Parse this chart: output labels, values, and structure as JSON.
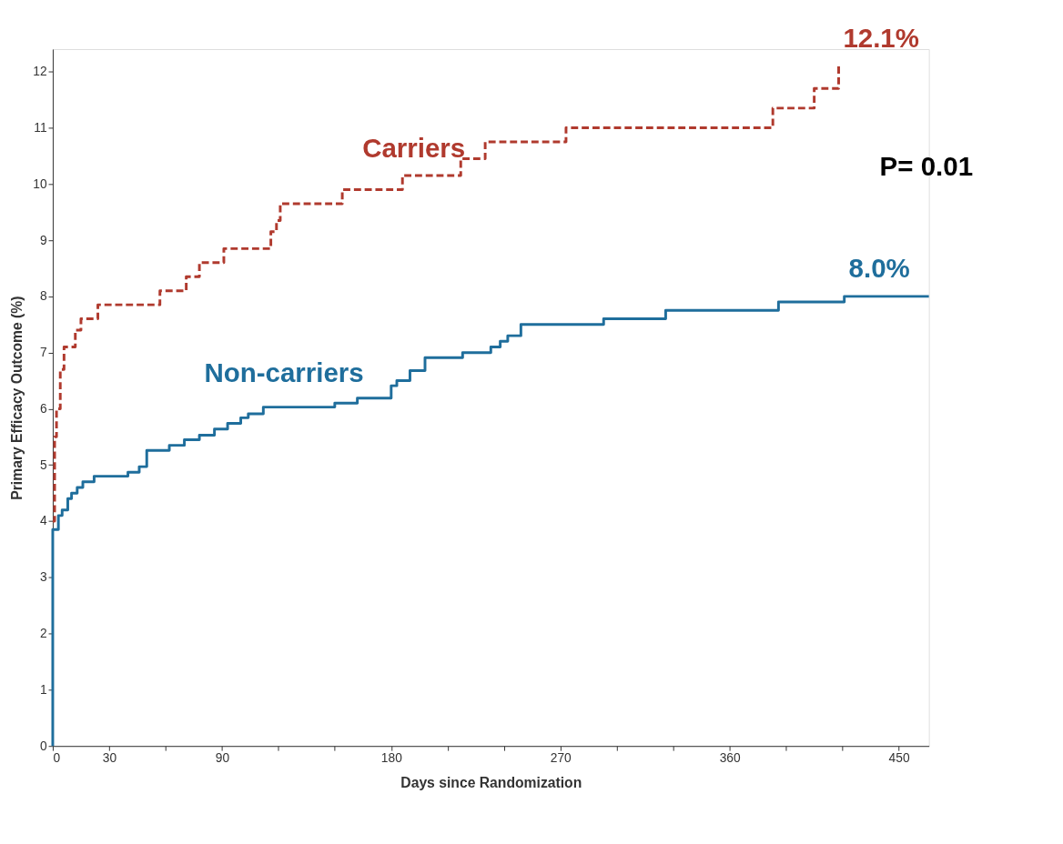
{
  "chart_data": {
    "type": "step",
    "xlabel": "Days since Randomization",
    "ylabel": "Primary Efficacy Outcome (%)",
    "xlim": [
      0,
      466
    ],
    "ylim": [
      0,
      12.4
    ],
    "xticks": [
      0,
      30,
      {
        "value": 60,
        "label": null
      },
      90,
      {
        "value": 120,
        "label": null
      },
      {
        "value": 150,
        "label": null
      },
      180,
      {
        "value": 210,
        "label": null
      },
      {
        "value": 240,
        "label": null
      },
      270,
      {
        "value": 300,
        "label": null
      },
      {
        "value": 330,
        "label": null
      },
      360,
      {
        "value": 390,
        "label": null
      },
      {
        "value": 420,
        "label": null
      },
      450
    ],
    "yticks": [
      0,
      1,
      2,
      3,
      4,
      5,
      6,
      7,
      8,
      9,
      10,
      11,
      12
    ],
    "grid": false,
    "legend": false,
    "series": [
      {
        "name": "Carriers",
        "color": "#b03a2e",
        "line_style": "dashed",
        "x": [
          0,
          1,
          2,
          4,
          6,
          12,
          15,
          24,
          57,
          71,
          78,
          91,
          116,
          119,
          121,
          154,
          186,
          217,
          230,
          273,
          383,
          405,
          418
        ],
        "values": [
          4.0,
          5.5,
          6.0,
          6.7,
          7.1,
          7.4,
          7.6,
          7.85,
          8.1,
          8.35,
          8.6,
          8.85,
          9.15,
          9.35,
          9.65,
          9.9,
          10.15,
          10.45,
          10.75,
          11.0,
          11.35,
          11.7,
          12.1
        ]
      },
      {
        "name": "Non-carriers",
        "color": "#1f6e9c",
        "line_style": "solid",
        "x": [
          0,
          0,
          3,
          5,
          8,
          10,
          13,
          16,
          22,
          40,
          46,
          50,
          62,
          70,
          78,
          86,
          93,
          100,
          104,
          112,
          150,
          162,
          180,
          183,
          190,
          198,
          218,
          233,
          238,
          242,
          249,
          293,
          326,
          386,
          421,
          466
        ],
        "values": [
          0,
          3.85,
          4.1,
          4.2,
          4.4,
          4.5,
          4.6,
          4.7,
          4.8,
          4.87,
          4.97,
          5.26,
          5.35,
          5.45,
          5.53,
          5.64,
          5.74,
          5.84,
          5.91,
          6.03,
          6.1,
          6.19,
          6.41,
          6.5,
          6.68,
          6.91,
          7.0,
          7.1,
          7.2,
          7.3,
          7.5,
          7.6,
          7.75,
          7.9,
          8.0,
          8.0
        ]
      }
    ],
    "annotations": [
      {
        "text": "12.1%",
        "x": 418,
        "y": 12.1
      },
      {
        "text": "8.0%",
        "x": 421,
        "y": 8.0
      },
      "P= 0.01"
    ]
  }
}
